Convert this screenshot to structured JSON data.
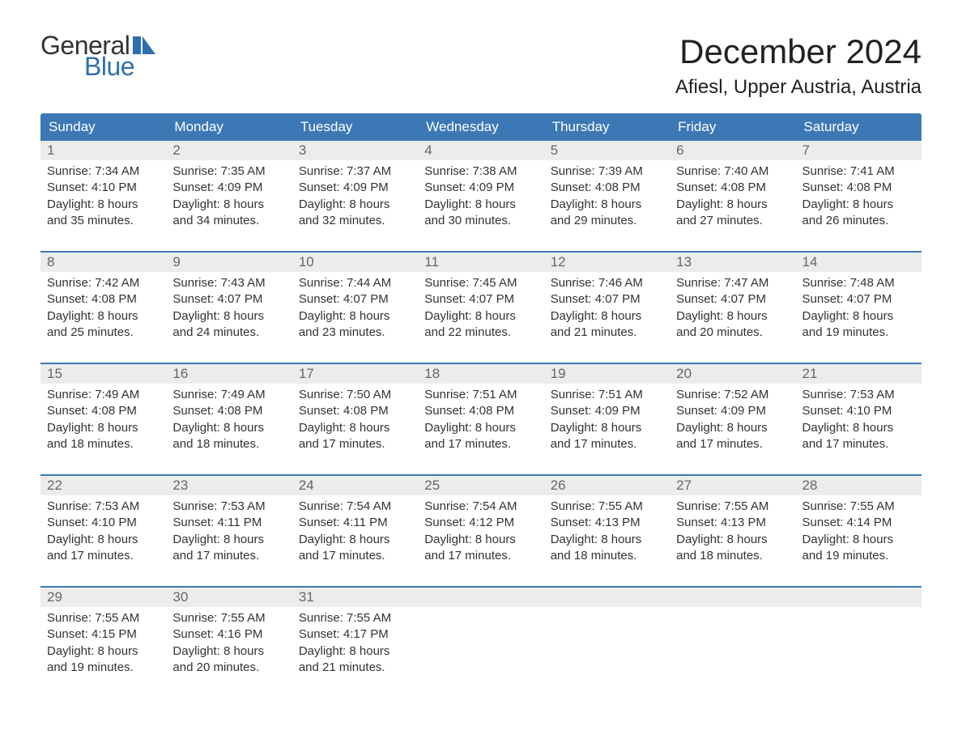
{
  "brand": {
    "line1": "General",
    "line2": "Blue",
    "accent_color": "#2f6fb0"
  },
  "title": "December 2024",
  "location": "Afiesl, Upper Austria, Austria",
  "colors": {
    "header_bg": "#3d78b6",
    "header_text": "#ffffff",
    "daynum_bg": "#ececec",
    "daynum_text": "#666666",
    "body_text": "#333333",
    "rule": "#3d78b6",
    "page_bg": "#ffffff"
  },
  "typography": {
    "title_fontsize": 42,
    "location_fontsize": 24,
    "header_fontsize": 17,
    "daynum_fontsize": 17,
    "detail_fontsize": 15,
    "font_family": "Arial"
  },
  "day_names": [
    "Sunday",
    "Monday",
    "Tuesday",
    "Wednesday",
    "Thursday",
    "Friday",
    "Saturday"
  ],
  "weeks": [
    [
      {
        "n": "1",
        "sr": "Sunrise: 7:34 AM",
        "ss": "Sunset: 4:10 PM",
        "d1": "Daylight: 8 hours",
        "d2": "and 35 minutes."
      },
      {
        "n": "2",
        "sr": "Sunrise: 7:35 AM",
        "ss": "Sunset: 4:09 PM",
        "d1": "Daylight: 8 hours",
        "d2": "and 34 minutes."
      },
      {
        "n": "3",
        "sr": "Sunrise: 7:37 AM",
        "ss": "Sunset: 4:09 PM",
        "d1": "Daylight: 8 hours",
        "d2": "and 32 minutes."
      },
      {
        "n": "4",
        "sr": "Sunrise: 7:38 AM",
        "ss": "Sunset: 4:09 PM",
        "d1": "Daylight: 8 hours",
        "d2": "and 30 minutes."
      },
      {
        "n": "5",
        "sr": "Sunrise: 7:39 AM",
        "ss": "Sunset: 4:08 PM",
        "d1": "Daylight: 8 hours",
        "d2": "and 29 minutes."
      },
      {
        "n": "6",
        "sr": "Sunrise: 7:40 AM",
        "ss": "Sunset: 4:08 PM",
        "d1": "Daylight: 8 hours",
        "d2": "and 27 minutes."
      },
      {
        "n": "7",
        "sr": "Sunrise: 7:41 AM",
        "ss": "Sunset: 4:08 PM",
        "d1": "Daylight: 8 hours",
        "d2": "and 26 minutes."
      }
    ],
    [
      {
        "n": "8",
        "sr": "Sunrise: 7:42 AM",
        "ss": "Sunset: 4:08 PM",
        "d1": "Daylight: 8 hours",
        "d2": "and 25 minutes."
      },
      {
        "n": "9",
        "sr": "Sunrise: 7:43 AM",
        "ss": "Sunset: 4:07 PM",
        "d1": "Daylight: 8 hours",
        "d2": "and 24 minutes."
      },
      {
        "n": "10",
        "sr": "Sunrise: 7:44 AM",
        "ss": "Sunset: 4:07 PM",
        "d1": "Daylight: 8 hours",
        "d2": "and 23 minutes."
      },
      {
        "n": "11",
        "sr": "Sunrise: 7:45 AM",
        "ss": "Sunset: 4:07 PM",
        "d1": "Daylight: 8 hours",
        "d2": "and 22 minutes."
      },
      {
        "n": "12",
        "sr": "Sunrise: 7:46 AM",
        "ss": "Sunset: 4:07 PM",
        "d1": "Daylight: 8 hours",
        "d2": "and 21 minutes."
      },
      {
        "n": "13",
        "sr": "Sunrise: 7:47 AM",
        "ss": "Sunset: 4:07 PM",
        "d1": "Daylight: 8 hours",
        "d2": "and 20 minutes."
      },
      {
        "n": "14",
        "sr": "Sunrise: 7:48 AM",
        "ss": "Sunset: 4:07 PM",
        "d1": "Daylight: 8 hours",
        "d2": "and 19 minutes."
      }
    ],
    [
      {
        "n": "15",
        "sr": "Sunrise: 7:49 AM",
        "ss": "Sunset: 4:08 PM",
        "d1": "Daylight: 8 hours",
        "d2": "and 18 minutes."
      },
      {
        "n": "16",
        "sr": "Sunrise: 7:49 AM",
        "ss": "Sunset: 4:08 PM",
        "d1": "Daylight: 8 hours",
        "d2": "and 18 minutes."
      },
      {
        "n": "17",
        "sr": "Sunrise: 7:50 AM",
        "ss": "Sunset: 4:08 PM",
        "d1": "Daylight: 8 hours",
        "d2": "and 17 minutes."
      },
      {
        "n": "18",
        "sr": "Sunrise: 7:51 AM",
        "ss": "Sunset: 4:08 PM",
        "d1": "Daylight: 8 hours",
        "d2": "and 17 minutes."
      },
      {
        "n": "19",
        "sr": "Sunrise: 7:51 AM",
        "ss": "Sunset: 4:09 PM",
        "d1": "Daylight: 8 hours",
        "d2": "and 17 minutes."
      },
      {
        "n": "20",
        "sr": "Sunrise: 7:52 AM",
        "ss": "Sunset: 4:09 PM",
        "d1": "Daylight: 8 hours",
        "d2": "and 17 minutes."
      },
      {
        "n": "21",
        "sr": "Sunrise: 7:53 AM",
        "ss": "Sunset: 4:10 PM",
        "d1": "Daylight: 8 hours",
        "d2": "and 17 minutes."
      }
    ],
    [
      {
        "n": "22",
        "sr": "Sunrise: 7:53 AM",
        "ss": "Sunset: 4:10 PM",
        "d1": "Daylight: 8 hours",
        "d2": "and 17 minutes."
      },
      {
        "n": "23",
        "sr": "Sunrise: 7:53 AM",
        "ss": "Sunset: 4:11 PM",
        "d1": "Daylight: 8 hours",
        "d2": "and 17 minutes."
      },
      {
        "n": "24",
        "sr": "Sunrise: 7:54 AM",
        "ss": "Sunset: 4:11 PM",
        "d1": "Daylight: 8 hours",
        "d2": "and 17 minutes."
      },
      {
        "n": "25",
        "sr": "Sunrise: 7:54 AM",
        "ss": "Sunset: 4:12 PM",
        "d1": "Daylight: 8 hours",
        "d2": "and 17 minutes."
      },
      {
        "n": "26",
        "sr": "Sunrise: 7:55 AM",
        "ss": "Sunset: 4:13 PM",
        "d1": "Daylight: 8 hours",
        "d2": "and 18 minutes."
      },
      {
        "n": "27",
        "sr": "Sunrise: 7:55 AM",
        "ss": "Sunset: 4:13 PM",
        "d1": "Daylight: 8 hours",
        "d2": "and 18 minutes."
      },
      {
        "n": "28",
        "sr": "Sunrise: 7:55 AM",
        "ss": "Sunset: 4:14 PM",
        "d1": "Daylight: 8 hours",
        "d2": "and 19 minutes."
      }
    ],
    [
      {
        "n": "29",
        "sr": "Sunrise: 7:55 AM",
        "ss": "Sunset: 4:15 PM",
        "d1": "Daylight: 8 hours",
        "d2": "and 19 minutes."
      },
      {
        "n": "30",
        "sr": "Sunrise: 7:55 AM",
        "ss": "Sunset: 4:16 PM",
        "d1": "Daylight: 8 hours",
        "d2": "and 20 minutes."
      },
      {
        "n": "31",
        "sr": "Sunrise: 7:55 AM",
        "ss": "Sunset: 4:17 PM",
        "d1": "Daylight: 8 hours",
        "d2": "and 21 minutes."
      },
      null,
      null,
      null,
      null
    ]
  ]
}
